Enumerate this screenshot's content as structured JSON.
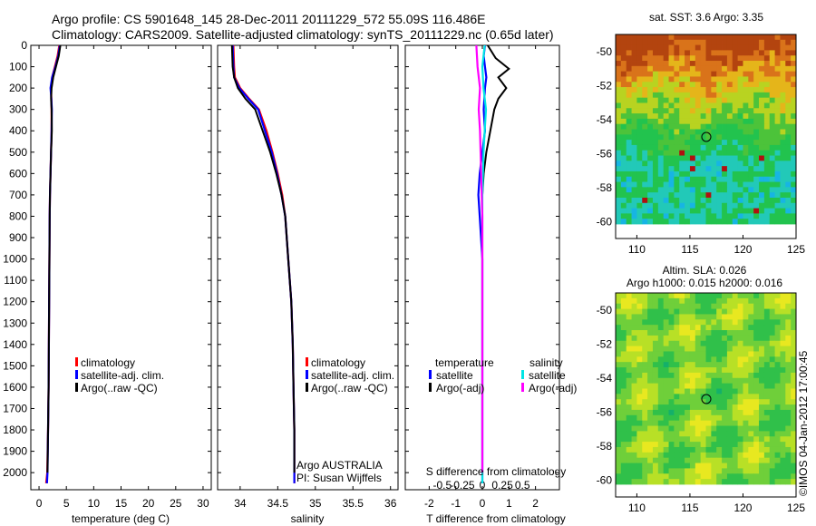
{
  "header": {
    "line1": "Argo profile: CS 5901648_145 28-Dec-2011 20111229_572 55.09S 116.486E",
    "line2": "Climatology: CARS2009. Satellite-adjusted climatology: synTS_20111229.nc (0.65d later)"
  },
  "colors": {
    "climatology": "#ff0000",
    "satellite": "#0000ff",
    "argo": "#000000",
    "salinity_satellite": "#00e5e5",
    "salinity_argo": "#ff00ff"
  },
  "chart_data": [
    {
      "type": "line",
      "panel": "temperature",
      "xlabel": "temperature (deg C)",
      "xlim": [
        -1.5,
        31.5
      ],
      "xticks": [
        0,
        5,
        10,
        15,
        20,
        25,
        30
      ],
      "ylim": [
        0,
        2080
      ],
      "yticks": [
        0,
        100,
        200,
        300,
        400,
        500,
        600,
        700,
        800,
        900,
        1000,
        1100,
        1200,
        1300,
        1400,
        1500,
        1600,
        1700,
        1800,
        1900,
        2000
      ],
      "y_reversed": true,
      "legend": [
        "climatology",
        "satellite-adj. clim.",
        "Argo(..raw -QC)"
      ],
      "series": [
        {
          "name": "climatology",
          "color": "#ff0000",
          "x": [
            3.7,
            3.4,
            2.9,
            2.4,
            2.2,
            2.25,
            2.3,
            2.3,
            2.2,
            2.1,
            2.0,
            1.95,
            1.9,
            1.85,
            1.8,
            1.75,
            1.65,
            1.5,
            1.3
          ],
          "y": [
            0,
            50,
            100,
            150,
            200,
            250,
            300,
            400,
            500,
            600,
            700,
            800,
            1000,
            1200,
            1400,
            1600,
            1800,
            2000,
            2050
          ]
        },
        {
          "name": "satellite-adj. clim.",
          "color": "#0000ff",
          "x": [
            3.8,
            3.5,
            3.0,
            2.4,
            2.1,
            2.25,
            2.35,
            2.3,
            2.2,
            2.1,
            2.0,
            1.95,
            1.9,
            1.85,
            1.8,
            1.75,
            1.65,
            1.55,
            1.45
          ],
          "y": [
            0,
            50,
            100,
            150,
            200,
            250,
            300,
            400,
            500,
            600,
            700,
            800,
            1000,
            1200,
            1400,
            1600,
            1800,
            2000,
            2050
          ]
        },
        {
          "name": "Argo(..raw -QC)",
          "color": "#000000",
          "x": [
            3.9,
            3.6,
            3.1,
            2.6,
            2.3,
            2.2,
            2.3,
            2.35,
            2.2,
            2.1,
            2.0,
            1.95,
            1.9,
            1.85,
            1.8,
            1.75,
            1.65,
            1.55
          ],
          "y": [
            0,
            50,
            100,
            150,
            200,
            250,
            300,
            400,
            500,
            600,
            700,
            800,
            1000,
            1200,
            1400,
            1600,
            1800,
            2000
          ]
        }
      ]
    },
    {
      "type": "line",
      "panel": "salinity",
      "xlabel": "salinity",
      "xlim": [
        33.7,
        36.1
      ],
      "xticks": [
        34,
        34.5,
        35,
        35.5,
        36
      ],
      "ylim": [
        0,
        2080
      ],
      "y_reversed": true,
      "legend": [
        "climatology",
        "satellite-adj. clim.",
        "Argo(..raw -QC)"
      ],
      "annotation": [
        "Argo AUSTRALIA",
        "PI: Susan Wijffels"
      ],
      "series": [
        {
          "name": "climatology",
          "color": "#ff0000",
          "x": [
            33.91,
            33.92,
            33.93,
            34.0,
            34.12,
            34.25,
            34.35,
            34.43,
            34.5,
            34.56,
            34.6,
            34.64,
            34.68,
            34.7,
            34.71,
            34.72,
            34.72,
            34.72
          ],
          "y": [
            0,
            100,
            150,
            200,
            250,
            300,
            400,
            500,
            600,
            700,
            800,
            1000,
            1200,
            1400,
            1600,
            1800,
            2000,
            2050
          ]
        },
        {
          "name": "satellite-adj. clim.",
          "color": "#0000ff",
          "x": [
            33.9,
            33.91,
            33.92,
            33.99,
            34.11,
            34.24,
            34.33,
            34.42,
            34.49,
            34.55,
            34.6,
            34.64,
            34.68,
            34.7,
            34.71,
            34.72,
            34.72,
            34.72
          ],
          "y": [
            0,
            100,
            150,
            200,
            250,
            300,
            400,
            500,
            600,
            700,
            800,
            1000,
            1200,
            1400,
            1600,
            1800,
            2000,
            2050
          ]
        },
        {
          "name": "Argo(..raw -QC)",
          "color": "#000000",
          "x": [
            33.89,
            33.9,
            33.92,
            33.97,
            34.07,
            34.2,
            34.3,
            34.4,
            34.48,
            34.55,
            34.6,
            34.64,
            34.68,
            34.7,
            34.71,
            34.72,
            34.72
          ],
          "y": [
            0,
            100,
            150,
            200,
            250,
            300,
            400,
            500,
            600,
            700,
            800,
            1000,
            1200,
            1400,
            1600,
            1800,
            2000
          ]
        }
      ]
    },
    {
      "type": "line",
      "panel": "difference",
      "xlabel": "T difference from climatology",
      "xlabel_top": "S difference from climatology",
      "xlim": [
        -2.9,
        2.9
      ],
      "xticks": [
        -2,
        -1,
        0,
        1,
        2
      ],
      "xticks_top": [
        -0.5,
        -0.25,
        0,
        0.25,
        0.5
      ],
      "ylim": [
        0,
        2080
      ],
      "y_reversed": true,
      "legend_titles": [
        "temperature",
        "salinity"
      ],
      "legend_left": [
        "satellite",
        "Argo(-adj)"
      ],
      "legend_right": [
        "satellite",
        "Argo(-adj)"
      ],
      "series": [
        {
          "name": "temperature satellite",
          "color": "#0000ff",
          "x": [
            0.1,
            0.05,
            0.1,
            0.15,
            0.1,
            0.05,
            0.1,
            0.0,
            -0.1,
            -0.15,
            -0.1,
            0.0,
            0.0,
            0.0,
            0.0
          ],
          "y": [
            0,
            50,
            100,
            150,
            200,
            300,
            400,
            500,
            600,
            700,
            800,
            1000,
            1400,
            1800,
            2050
          ]
        },
        {
          "name": "temperature Argo(-adj)",
          "color": "#000000",
          "x": [
            0.2,
            0.5,
            1.0,
            0.6,
            0.9,
            0.6,
            0.45,
            0.3,
            0.15,
            0.05,
            0.0,
            0.0,
            0.0,
            0.0,
            0.0
          ],
          "y": [
            0,
            60,
            110,
            150,
            200,
            250,
            300,
            400,
            500,
            600,
            700,
            900,
            1200,
            1600,
            2000
          ]
        },
        {
          "name": "salinity satellite",
          "color": "#00e5e5",
          "x": [
            0.02,
            0.0,
            0.01,
            0.03,
            0.02,
            0.01,
            0.0,
            0.0,
            0.0,
            0.0,
            0.0
          ],
          "y": [
            0,
            100,
            200,
            300,
            400,
            500,
            700,
            1000,
            1400,
            1800,
            2050
          ]
        },
        {
          "name": "salinity Argo(-adj)",
          "color": "#ff00ff",
          "x": [
            -0.05,
            -0.04,
            -0.02,
            -0.03,
            -0.02,
            -0.01,
            0.0,
            0.0,
            0.0
          ],
          "y": [
            0,
            100,
            200,
            300,
            400,
            600,
            800,
            1200,
            2000
          ]
        }
      ]
    },
    {
      "type": "heatmap",
      "panel": "sst-map",
      "title": "sat. SST: 3.6 Argo: 3.35",
      "xlim": [
        108,
        125
      ],
      "xticks": [
        110,
        115,
        120,
        125
      ],
      "ylim": [
        -61,
        -49
      ],
      "yticks": [
        -50,
        -52,
        -54,
        -56,
        -58,
        -60
      ],
      "marker": {
        "lon": 116.486,
        "lat": -55.09
      }
    },
    {
      "type": "heatmap",
      "panel": "sla-map",
      "title": "Altim. SLA: 0.026",
      "subtitle": "Argo h1000: 0.015 h2000: 0.016",
      "xlim": [
        108,
        125
      ],
      "xticks": [
        110,
        115,
        120,
        125
      ],
      "ylim": [
        -61,
        -49
      ],
      "yticks": [
        -50,
        -52,
        -54,
        -56,
        -58,
        -60
      ],
      "marker": {
        "lon": 116.486,
        "lat": -55.09
      }
    }
  ],
  "credit": "©IMOS 04-Jan-2012 17:00:45"
}
